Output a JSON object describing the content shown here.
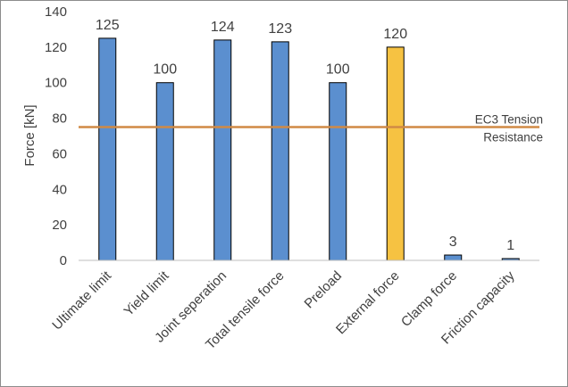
{
  "chart_data": {
    "type": "bar",
    "title": "",
    "xlabel": "",
    "ylabel": "Force [kN]",
    "ylim": [
      0,
      140
    ],
    "yticks": [
      0,
      20,
      40,
      60,
      80,
      100,
      120,
      140
    ],
    "grid": false,
    "categories": [
      "Ultimate limit",
      "Yield limit",
      "Joint seperation",
      "Total tensile force",
      "Preload",
      "External force",
      "Clamp force",
      "Friction capacity"
    ],
    "values": [
      125,
      100,
      124,
      123,
      100,
      120,
      3,
      1
    ],
    "data_labels": [
      "125",
      "100",
      "124",
      "123",
      "100",
      "120",
      "3",
      "1"
    ],
    "bar_colors": [
      "#5b8fcf",
      "#5b8fcf",
      "#5b8fcf",
      "#5b8fcf",
      "#5b8fcf",
      "#f6c242",
      "#5b8fcf",
      "#5b8fcf"
    ],
    "reference_line": {
      "value": 75,
      "label_lines": [
        "EC3 Tension",
        "Resistance"
      ],
      "color": "#d08a45"
    }
  }
}
